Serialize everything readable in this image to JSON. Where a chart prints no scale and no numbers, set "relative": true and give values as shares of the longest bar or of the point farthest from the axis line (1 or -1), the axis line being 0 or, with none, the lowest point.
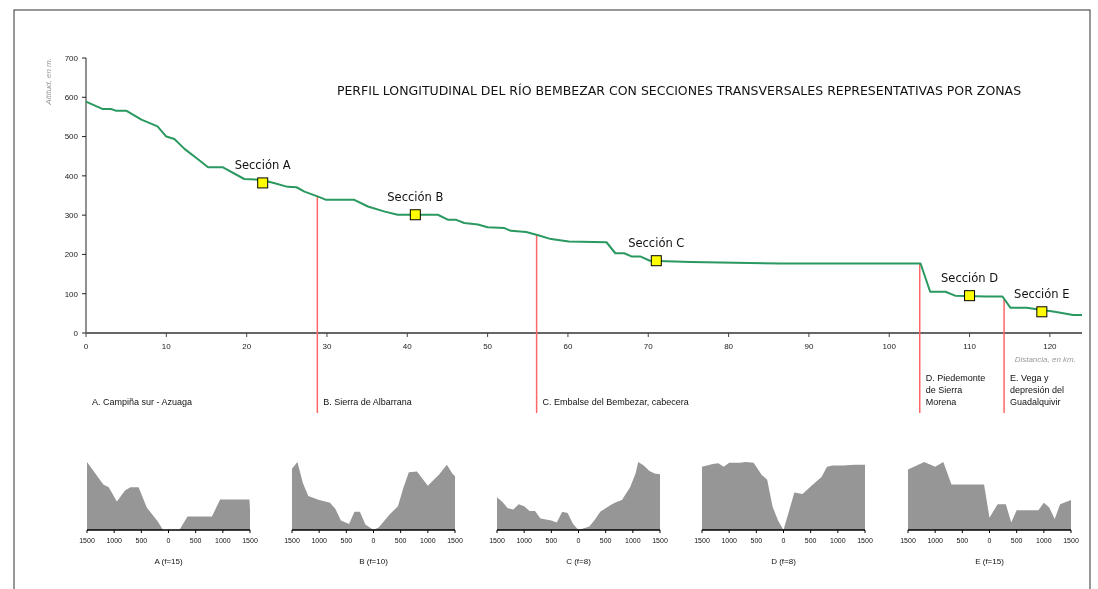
{
  "chart_data": [
    {
      "type": "line",
      "title": "PERFIL LONGITUDINAL DEL RÍO BEMBEZAR CON SECCIONES TRANSVERSALES REPRESENTATIVAS POR ZONAS",
      "xlabel": "Distancia, en km.",
      "ylabel": "Altitud, en m.",
      "xlim": [
        0,
        124
      ],
      "xticks": [
        0,
        10,
        20,
        30,
        40,
        50,
        60,
        70,
        80,
        90,
        100,
        110,
        120
      ],
      "ylim": [
        0,
        700
      ],
      "yticks": [
        0,
        100,
        200,
        300,
        400,
        500,
        600,
        700
      ],
      "grid": false,
      "series": [
        {
          "type": "line",
          "color": "#2a9960",
          "x": [
            0,
            2.1,
            3.1,
            3.7,
            5,
            6.9,
            8.9,
            10,
            11,
            12.3,
            13.9,
            15.2,
            17,
            19.7,
            21.8,
            23.5,
            25.1,
            26.2,
            27.2,
            28.9,
            29.9,
            33.4,
            35.1,
            37.2,
            38.8,
            43.8,
            45.1,
            46.1,
            47.1,
            48.8,
            50,
            52.1,
            52.9,
            54.8,
            56.3,
            57.9,
            60.1,
            64.8,
            65.9,
            67,
            67.9,
            69,
            70.2,
            75.3,
            86.4,
            103.9,
            105.1,
            107,
            108.2,
            112.1,
            114.1,
            115.1,
            117.1,
            120.6,
            122.9,
            124
          ],
          "values": [
            589,
            570,
            570,
            566,
            566,
            543,
            526,
            500,
            494,
            468,
            443,
            422,
            422,
            392,
            390,
            381,
            372,
            371,
            360,
            347,
            339,
            339,
            322,
            309,
            301,
            301,
            288,
            288,
            280,
            276,
            269,
            267,
            260,
            257,
            249,
            239,
            233,
            231,
            203,
            203,
            195,
            195,
            184,
            181,
            177,
            177,
            105,
            105,
            95,
            93,
            93,
            64,
            64,
            54,
            46,
            46
          ]
        },
        {
          "type": "scatter",
          "color": "#ffff00",
          "marker": "square",
          "x": [
            22,
            41,
            71,
            110,
            119
          ],
          "values": [
            382,
            301,
            184,
            95,
            54
          ]
        }
      ],
      "annotations": [
        {
          "text": "Sección A",
          "x": 22,
          "y": 382
        },
        {
          "text": "Sección B",
          "x": 41,
          "y": 301
        },
        {
          "text": "Sección C",
          "x": 71,
          "y": 184
        },
        {
          "text": "Sección D",
          "x": 110,
          "y": 95
        },
        {
          "text": "Sección E",
          "x": 119,
          "y": 54
        },
        "A. Campiña sur - Azuaga"
      ],
      "ref_lines": [
        {
          "axis": "x",
          "value": 28.8,
          "label": "B. Sierra de Albarrana",
          "color": "#ff6666"
        },
        {
          "axis": "x",
          "value": 56.1,
          "label": "C. Embalse del Bembezar, cabecera",
          "color": "#ff6666"
        },
        {
          "axis": "x",
          "value": 103.8,
          "label": "D. Piedemonte de Sierra Morena",
          "color": "#ff6666"
        },
        {
          "axis": "x",
          "value": 114.3,
          "label": "E. Vega y depresión del Guadalquivir",
          "color": "#ff6666"
        }
      ]
    },
    {
      "type": "area",
      "relative": true,
      "xlabel": "A (f=15)",
      "xlim": [
        -1500,
        1500
      ],
      "xticks": [
        {
          "value": -1500,
          "label": "1500"
        },
        {
          "value": -1000,
          "label": "1000"
        },
        {
          "value": -500,
          "label": "500"
        },
        {
          "value": 0,
          "label": "0"
        },
        {
          "value": 500,
          "label": "500"
        },
        {
          "value": 1000,
          "label": "1000"
        },
        {
          "value": 1500,
          "label": "1500"
        }
      ],
      "series": [
        {
          "color": "#969696",
          "x": [
            -1500,
            -1200,
            -1100,
            -950,
            -800,
            -700,
            -550,
            -400,
            -200,
            -100,
            0,
            200,
            350,
            800,
            950,
            1490,
            1500
          ],
          "values": [
            1,
            0.67,
            0.63,
            0.42,
            0.58,
            0.63,
            0.63,
            0.33,
            0.13,
            0,
            0,
            0,
            0.2,
            0.2,
            0.45,
            0.45,
            0.3
          ]
        }
      ]
    },
    {
      "type": "area",
      "relative": true,
      "xlabel": "B (f=10)",
      "xlim": [
        -1500,
        1500
      ],
      "xticks": [
        {
          "value": -1500,
          "label": "1500"
        },
        {
          "value": -1000,
          "label": "1000"
        },
        {
          "value": -500,
          "label": "500"
        },
        {
          "value": 0,
          "label": "0"
        },
        {
          "value": 500,
          "label": "500"
        },
        {
          "value": 1000,
          "label": "1000"
        },
        {
          "value": 1500,
          "label": "1500"
        }
      ],
      "series": [
        {
          "color": "#969696",
          "x": [
            -1500,
            -1400,
            -1300,
            -1200,
            -1000,
            -800,
            -700,
            -600,
            -450,
            -350,
            -250,
            -150,
            0,
            100,
            300,
            450,
            550,
            650,
            800,
            1000,
            1100,
            1200,
            1350,
            1450,
            1500
          ],
          "values": [
            0.9,
            1,
            0.69,
            0.5,
            0.44,
            0.4,
            0.31,
            0.14,
            0.09,
            0.27,
            0.27,
            0.08,
            0,
            0.04,
            0.23,
            0.35,
            0.62,
            0.85,
            0.86,
            0.65,
            0.73,
            0.81,
            0.96,
            0.83,
            0.79
          ]
        }
      ]
    },
    {
      "type": "area",
      "relative": true,
      "xlabel": "C (f=8)",
      "xlim": [
        -1500,
        1500
      ],
      "xticks": [
        {
          "value": -1500,
          "label": "1500"
        },
        {
          "value": -1000,
          "label": "1000"
        },
        {
          "value": -500,
          "label": "500"
        },
        {
          "value": 0,
          "label": "0"
        },
        {
          "value": 500,
          "label": "500"
        },
        {
          "value": 1000,
          "label": "1000"
        },
        {
          "value": 1500,
          "label": "1500"
        }
      ],
      "series": [
        {
          "color": "#969696",
          "x": [
            -1500,
            -1400,
            -1300,
            -1200,
            -1100,
            -1000,
            -900,
            -800,
            -700,
            -500,
            -400,
            -300,
            -200,
            -100,
            0,
            200,
            300,
            400,
            600,
            700,
            800,
            950,
            1050,
            1100,
            1200,
            1300,
            1400,
            1500
          ],
          "values": [
            0.48,
            0.41,
            0.32,
            0.3,
            0.38,
            0.35,
            0.28,
            0.28,
            0.17,
            0.14,
            0.11,
            0.27,
            0.25,
            0.09,
            0,
            0.05,
            0.15,
            0.27,
            0.37,
            0.41,
            0.44,
            0.63,
            0.83,
            1,
            0.95,
            0.87,
            0.83,
            0.82
          ]
        }
      ]
    },
    {
      "type": "area",
      "relative": true,
      "xlabel": "D (f=8)",
      "xlim": [
        -1500,
        1500
      ],
      "xticks": [
        {
          "value": -1500,
          "label": "1500"
        },
        {
          "value": -1000,
          "label": "1000"
        },
        {
          "value": -500,
          "label": "500"
        },
        {
          "value": 0,
          "label": "0"
        },
        {
          "value": 500,
          "label": "500"
        },
        {
          "value": 1000,
          "label": "1000"
        },
        {
          "value": 1500,
          "label": "1500"
        }
      ],
      "series": [
        {
          "color": "#969696",
          "x": [
            -1500,
            -1300,
            -1200,
            -1100,
            -1000,
            -800,
            -700,
            -550,
            -400,
            -300,
            -200,
            -100,
            0,
            200,
            350,
            500,
            700,
            800,
            900,
            1100,
            1300,
            1500
          ],
          "values": [
            0.93,
            0.97,
            0.98,
            0.93,
            0.99,
            0.99,
            1,
            0.99,
            0.81,
            0.74,
            0.34,
            0.14,
            0,
            0.55,
            0.53,
            0.64,
            0.78,
            0.93,
            0.95,
            0.95,
            0.96,
            0.96
          ]
        }
      ]
    },
    {
      "type": "area",
      "relative": true,
      "xlabel": "E (f=15)",
      "xlim": [
        -1500,
        1500
      ],
      "xticks": [
        {
          "value": -1500,
          "label": "1500"
        },
        {
          "value": -1000,
          "label": "1000"
        },
        {
          "value": -500,
          "label": "500"
        },
        {
          "value": 0,
          "label": "0"
        },
        {
          "value": 500,
          "label": "500"
        },
        {
          "value": 1000,
          "label": "1000"
        },
        {
          "value": 1500,
          "label": "1500"
        }
      ],
      "series": [
        {
          "color": "#969696",
          "x": [
            -1500,
            -1200,
            -1000,
            -850,
            -700,
            -100,
            0,
            150,
            300,
            400,
            500,
            900,
            1000,
            1100,
            1200,
            1300,
            1500
          ],
          "values": [
            0.89,
            1,
            0.93,
            1,
            0.67,
            0.67,
            0.18,
            0.38,
            0.38,
            0.11,
            0.29,
            0.29,
            0.4,
            0.33,
            0.16,
            0.38,
            0.44
          ]
        }
      ]
    }
  ]
}
